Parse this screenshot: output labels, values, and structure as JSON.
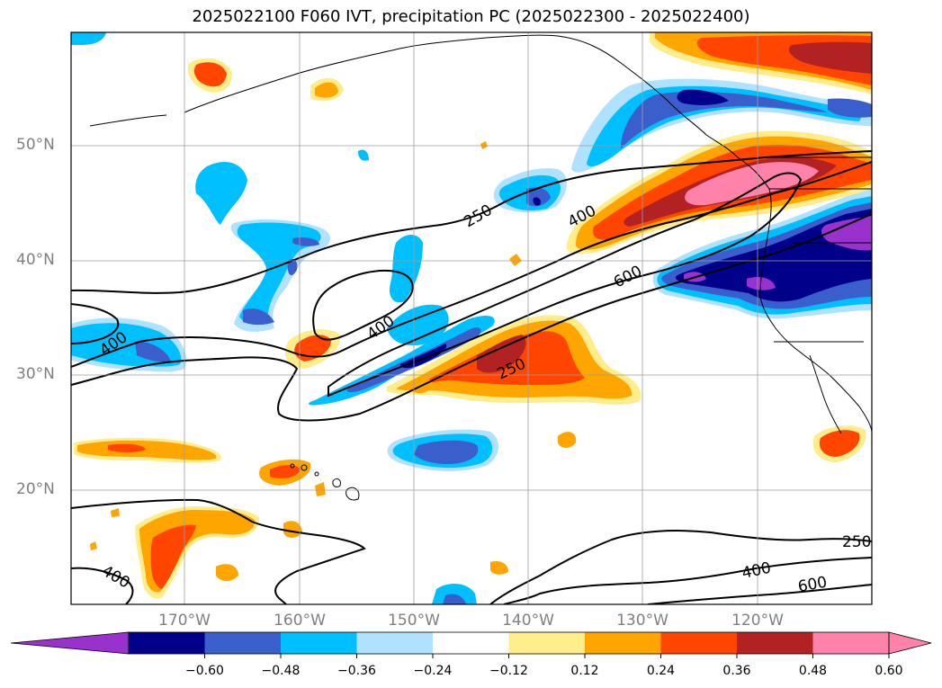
{
  "title": "2025022100 F060 IVT, precipitation PC (2025022300 - 2025022400)",
  "lat_labels": [
    "50°N",
    "40°N",
    "30°N",
    "20°N"
  ],
  "lon_labels": [
    "170°W",
    "160°W",
    "150°W",
    "140°W",
    "130°W",
    "120°W"
  ],
  "contour_labels": [
    "250",
    "400",
    "600",
    "400",
    "250",
    "400",
    "250",
    "400",
    "600"
  ],
  "colorbar": {
    "colors": [
      "#9932cc",
      "#00008b",
      "#3a5fcd",
      "#00bfff",
      "#b0e2ff",
      "#ffffff",
      "#ffec8b",
      "#ffa500",
      "#ff4500",
      "#b22222",
      "#ff82ab",
      "#ff82ab"
    ],
    "tick_labels": [
      "−0.60",
      "−0.48",
      "−0.36",
      "−0.24",
      "−0.12",
      "0.12",
      "0.24",
      "0.36",
      "0.48",
      "0.60"
    ]
  }
}
